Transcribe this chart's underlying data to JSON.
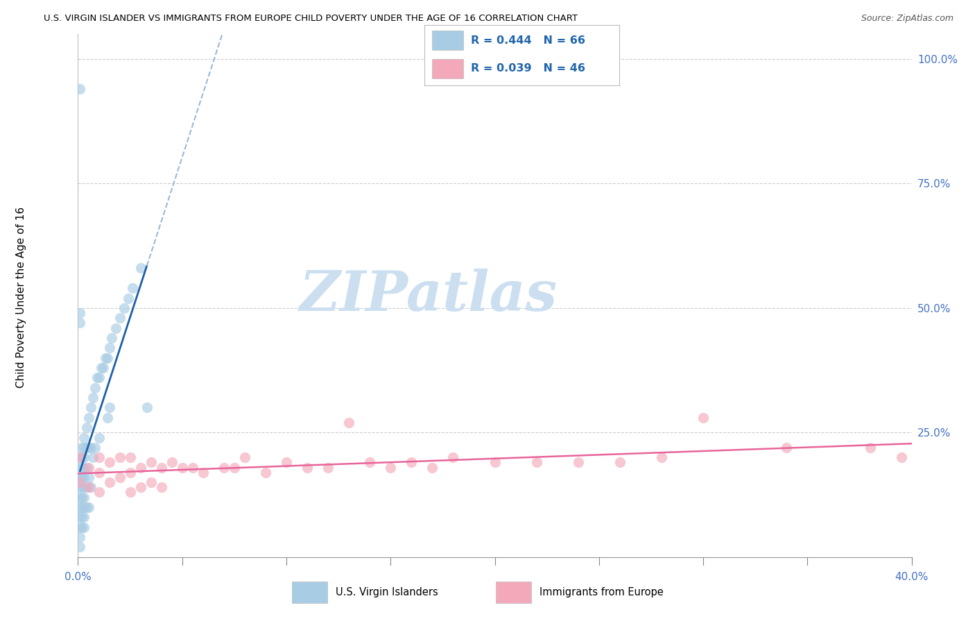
{
  "title": "U.S. VIRGIN ISLANDER VS IMMIGRANTS FROM EUROPE CHILD POVERTY UNDER THE AGE OF 16 CORRELATION CHART",
  "source": "Source: ZipAtlas.com",
  "ylabel": "Child Poverty Under the Age of 16",
  "xlim": [
    0.0,
    0.4
  ],
  "ylim": [
    0.0,
    1.05
  ],
  "yticks": [
    0.0,
    0.25,
    0.5,
    0.75,
    1.0
  ],
  "ytick_labels_right": [
    "",
    "25.0%",
    "50.0%",
    "75.0%",
    "100.0%"
  ],
  "xtick_vals": [
    0.0,
    0.05,
    0.1,
    0.15,
    0.2,
    0.25,
    0.3,
    0.35,
    0.4
  ],
  "R_blue": 0.444,
  "N_blue": 66,
  "R_pink": 0.039,
  "N_pink": 46,
  "blue_color": "#a8cce4",
  "pink_color": "#f4a9bb",
  "trend_blue_color": "#1a5fa8",
  "trend_pink_color": "#e8649a",
  "trend_dashed_color": "#9ab8d8",
  "watermark_color": "#ccdff0",
  "blue_x": [
    0.001,
    0.001,
    0.001,
    0.001,
    0.001,
    0.001,
    0.001,
    0.001,
    0.001,
    0.001,
    0.002,
    0.002,
    0.002,
    0.002,
    0.002,
    0.002,
    0.002,
    0.002,
    0.002,
    0.003,
    0.003,
    0.003,
    0.003,
    0.003,
    0.003,
    0.003,
    0.003,
    0.003,
    0.003,
    0.004,
    0.004,
    0.004,
    0.004,
    0.004,
    0.005,
    0.005,
    0.005,
    0.005,
    0.006,
    0.006,
    0.006,
    0.007,
    0.007,
    0.008,
    0.008,
    0.009,
    0.01,
    0.01,
    0.011,
    0.012,
    0.013,
    0.014,
    0.014,
    0.015,
    0.015,
    0.016,
    0.018,
    0.02,
    0.022,
    0.024,
    0.026,
    0.03,
    0.033,
    0.001,
    0.001,
    0.001
  ],
  "blue_y": [
    0.2,
    0.18,
    0.16,
    0.14,
    0.12,
    0.1,
    0.08,
    0.06,
    0.04,
    0.02,
    0.22,
    0.2,
    0.18,
    0.16,
    0.14,
    0.12,
    0.1,
    0.08,
    0.06,
    0.24,
    0.22,
    0.2,
    0.18,
    0.16,
    0.14,
    0.12,
    0.1,
    0.08,
    0.06,
    0.26,
    0.22,
    0.18,
    0.14,
    0.1,
    0.28,
    0.22,
    0.16,
    0.1,
    0.3,
    0.22,
    0.14,
    0.32,
    0.2,
    0.34,
    0.22,
    0.36,
    0.36,
    0.24,
    0.38,
    0.38,
    0.4,
    0.4,
    0.28,
    0.42,
    0.3,
    0.44,
    0.46,
    0.48,
    0.5,
    0.52,
    0.54,
    0.58,
    0.3,
    0.47,
    0.49,
    0.94
  ],
  "pink_x": [
    0.001,
    0.001,
    0.005,
    0.005,
    0.01,
    0.01,
    0.01,
    0.015,
    0.015,
    0.02,
    0.02,
    0.025,
    0.025,
    0.025,
    0.03,
    0.03,
    0.035,
    0.035,
    0.04,
    0.04,
    0.045,
    0.05,
    0.055,
    0.06,
    0.07,
    0.075,
    0.08,
    0.09,
    0.1,
    0.11,
    0.12,
    0.13,
    0.14,
    0.15,
    0.16,
    0.17,
    0.18,
    0.2,
    0.22,
    0.24,
    0.26,
    0.28,
    0.3,
    0.34,
    0.38,
    0.395
  ],
  "pink_y": [
    0.2,
    0.15,
    0.18,
    0.14,
    0.2,
    0.17,
    0.13,
    0.19,
    0.15,
    0.2,
    0.16,
    0.2,
    0.17,
    0.13,
    0.18,
    0.14,
    0.19,
    0.15,
    0.18,
    0.14,
    0.19,
    0.18,
    0.18,
    0.17,
    0.18,
    0.18,
    0.2,
    0.17,
    0.19,
    0.18,
    0.18,
    0.27,
    0.19,
    0.18,
    0.19,
    0.18,
    0.2,
    0.19,
    0.19,
    0.19,
    0.19,
    0.2,
    0.28,
    0.22,
    0.22,
    0.2
  ]
}
